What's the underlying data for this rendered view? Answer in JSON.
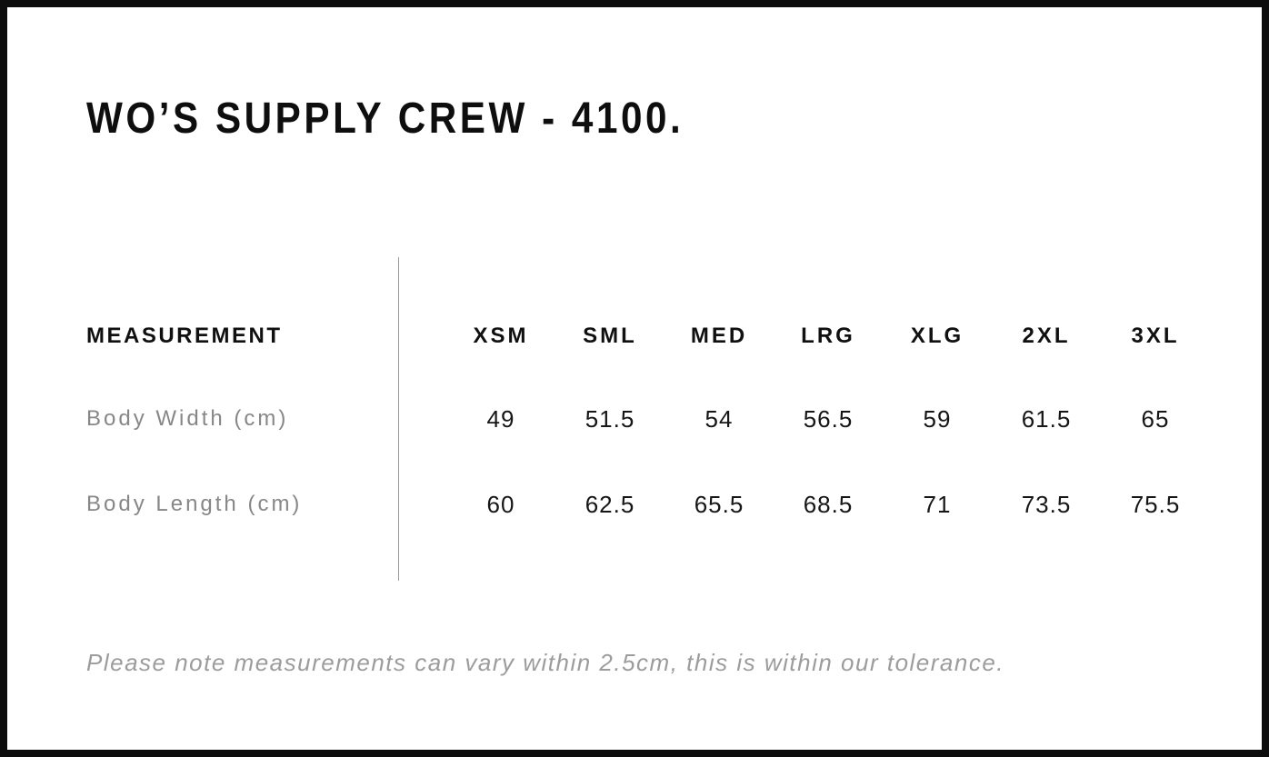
{
  "title": "WO’S SUPPLY CREW - 4100.",
  "table": {
    "measurement_header": "MEASUREMENT",
    "size_headers": [
      "XSM",
      "SML",
      "MED",
      "LRG",
      "XLG",
      "2XL",
      "3XL"
    ],
    "rows": [
      {
        "label": "Body Width (cm)",
        "values": [
          "49",
          "51.5",
          "54",
          "56.5",
          "59",
          "61.5",
          "65"
        ]
      },
      {
        "label": "Body Length (cm)",
        "values": [
          "60",
          "62.5",
          "65.5",
          "68.5",
          "71",
          "73.5",
          "75.5"
        ]
      }
    ]
  },
  "note": "Please note measurements can vary within 2.5cm, this is within our tolerance.",
  "colors": {
    "text_primary": "#101010",
    "text_muted": "#878787",
    "note_text": "#9c9c9c",
    "divider": "#9a9a9a",
    "frame_border": "#0d0d0d",
    "background": "#ffffff"
  },
  "chart_data": {
    "type": "table",
    "title": "WO’S SUPPLY CREW - 4100.",
    "columns": [
      "MEASUREMENT",
      "XSM",
      "SML",
      "MED",
      "LRG",
      "XLG",
      "2XL",
      "3XL"
    ],
    "rows": [
      [
        "Body Width (cm)",
        49,
        51.5,
        54,
        56.5,
        59,
        61.5,
        65
      ],
      [
        "Body Length (cm)",
        60,
        62.5,
        65.5,
        68.5,
        71,
        73.5,
        75.5
      ]
    ],
    "annotations": [
      "Please note measurements can vary within 2.5cm, this is within our tolerance."
    ]
  }
}
